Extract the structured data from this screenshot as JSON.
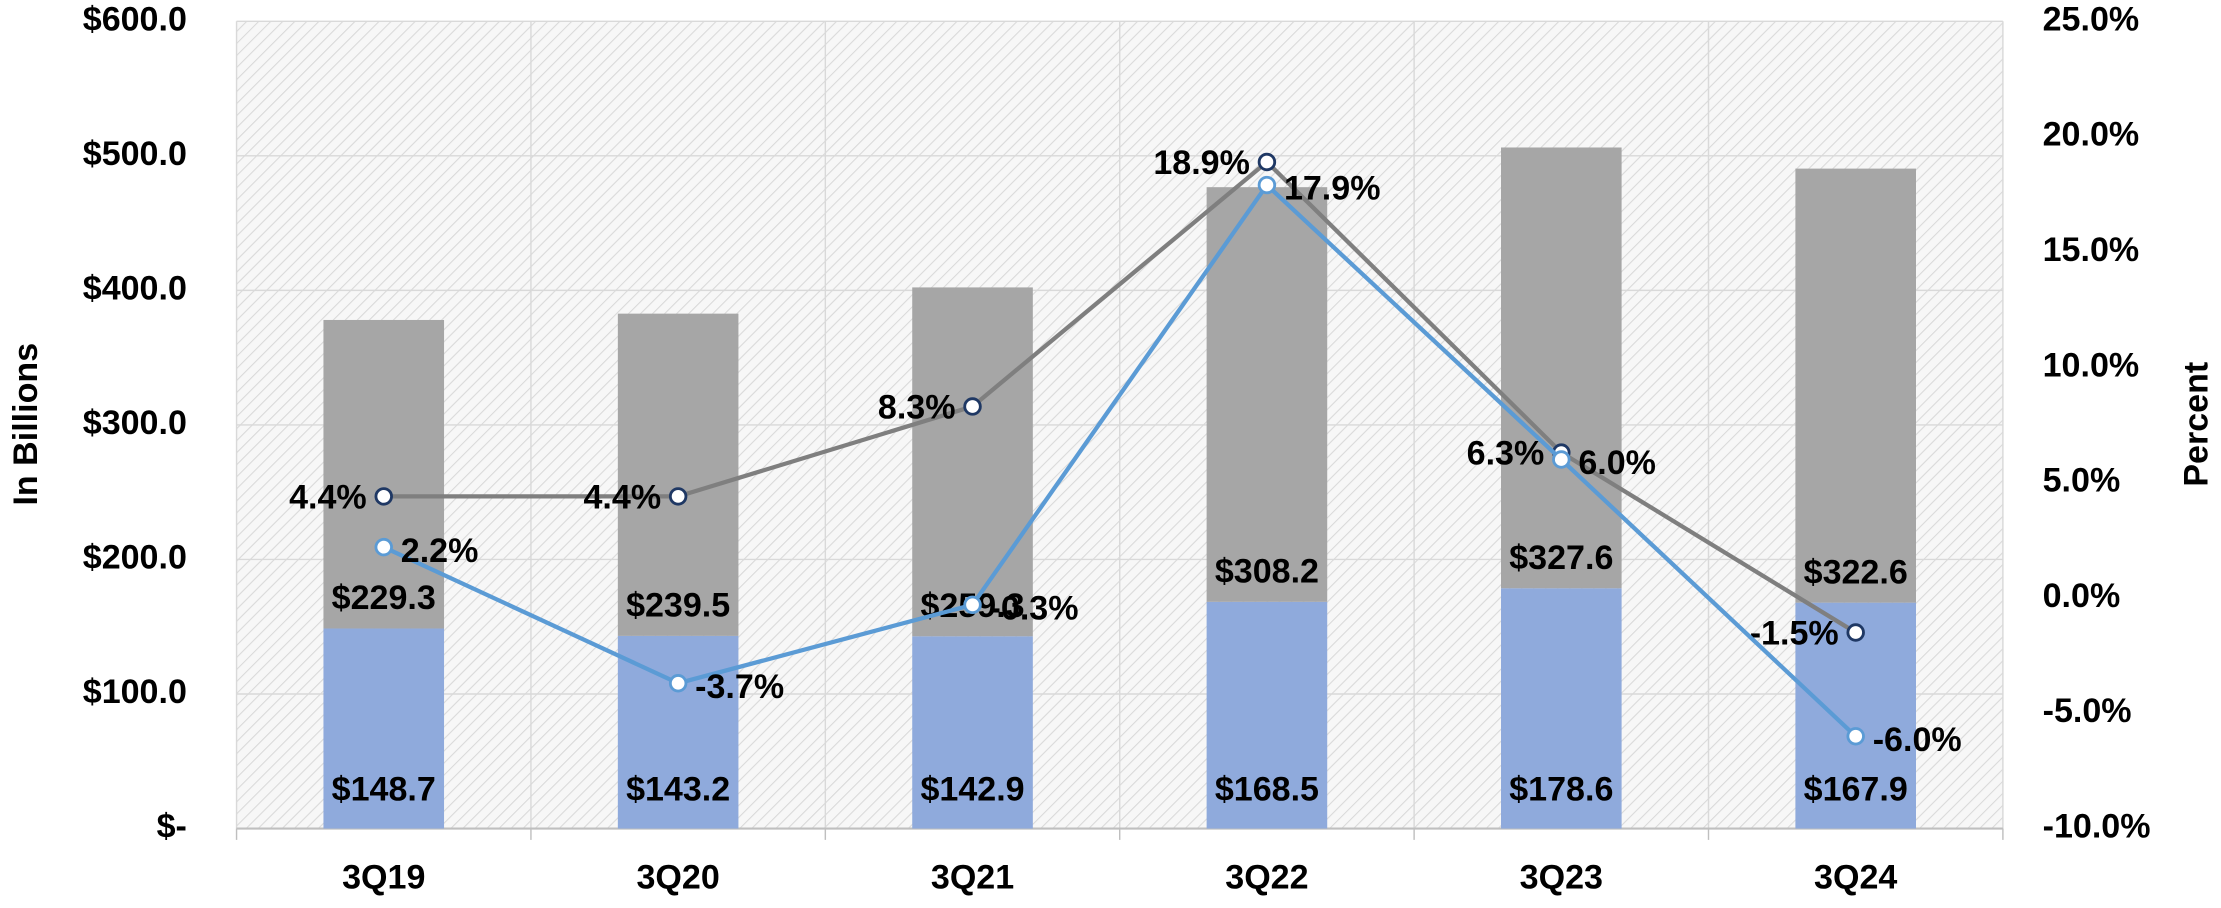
{
  "chart_data": {
    "type": "bar",
    "categories": [
      "3Q19",
      "3Q20",
      "3Q21",
      "3Q22",
      "3Q23",
      "3Q24"
    ],
    "y_label": "In Billions",
    "y2_label": "Percent",
    "ylim": [
      0,
      600
    ],
    "yticks": [
      {
        "value": 0,
        "label": "$-"
      },
      {
        "value": 100,
        "label": "$100.0"
      },
      {
        "value": 200,
        "label": "$200.0"
      },
      {
        "value": 300,
        "label": "$300.0"
      },
      {
        "value": 400,
        "label": "$400.0"
      },
      {
        "value": 500,
        "label": "$500.0"
      },
      {
        "value": 600,
        "label": "$600.0"
      }
    ],
    "y2lim": [
      -10,
      25
    ],
    "y2ticks": [
      {
        "value": -10,
        "label": "-10.0%"
      },
      {
        "value": -5,
        "label": "-5.0%"
      },
      {
        "value": 0,
        "label": "0.0%"
      },
      {
        "value": 5,
        "label": "5.0%"
      },
      {
        "value": 10,
        "label": "10.0%"
      },
      {
        "value": 15,
        "label": "15.0%"
      },
      {
        "value": 20,
        "label": "20.0%"
      },
      {
        "value": 25,
        "label": "25.0%"
      }
    ],
    "grid": true,
    "stacked": true,
    "series": [
      {
        "type": "bar",
        "color": "#8faadc",
        "values": [
          148.7,
          143.2,
          142.9,
          168.5,
          178.6,
          167.9
        ],
        "value_labels": [
          "$148.7",
          "$143.2",
          "$142.9",
          "$168.5",
          "$178.6",
          "$167.9"
        ]
      },
      {
        "type": "bar",
        "color": "#a6a6a6",
        "values": [
          229.3,
          239.5,
          259.3,
          308.2,
          327.6,
          322.6
        ],
        "value_labels": [
          "$229.3",
          "$239.5",
          "$259.3",
          "$308.2",
          "$327.6",
          "$322.6"
        ]
      },
      {
        "type": "line",
        "axis": "y2",
        "color": "#7f7f7f",
        "marker_stroke": "#1f3864",
        "values": [
          4.4,
          4.4,
          8.3,
          18.9,
          6.3,
          -1.5
        ],
        "value_labels": [
          "4.4%",
          "4.4%",
          "8.3%",
          "18.9%",
          "6.3%",
          "-1.5%"
        ]
      },
      {
        "type": "line",
        "axis": "y2",
        "color": "#5b9bd5",
        "marker_stroke": "#5b9bd5",
        "values": [
          2.2,
          -3.7,
          -0.3,
          17.9,
          6.0,
          -6.0
        ],
        "value_labels": [
          "2.2%",
          "-3.7%",
          "-0.3%",
          "17.9%",
          "6.0%",
          "-6.0%"
        ]
      }
    ]
  }
}
